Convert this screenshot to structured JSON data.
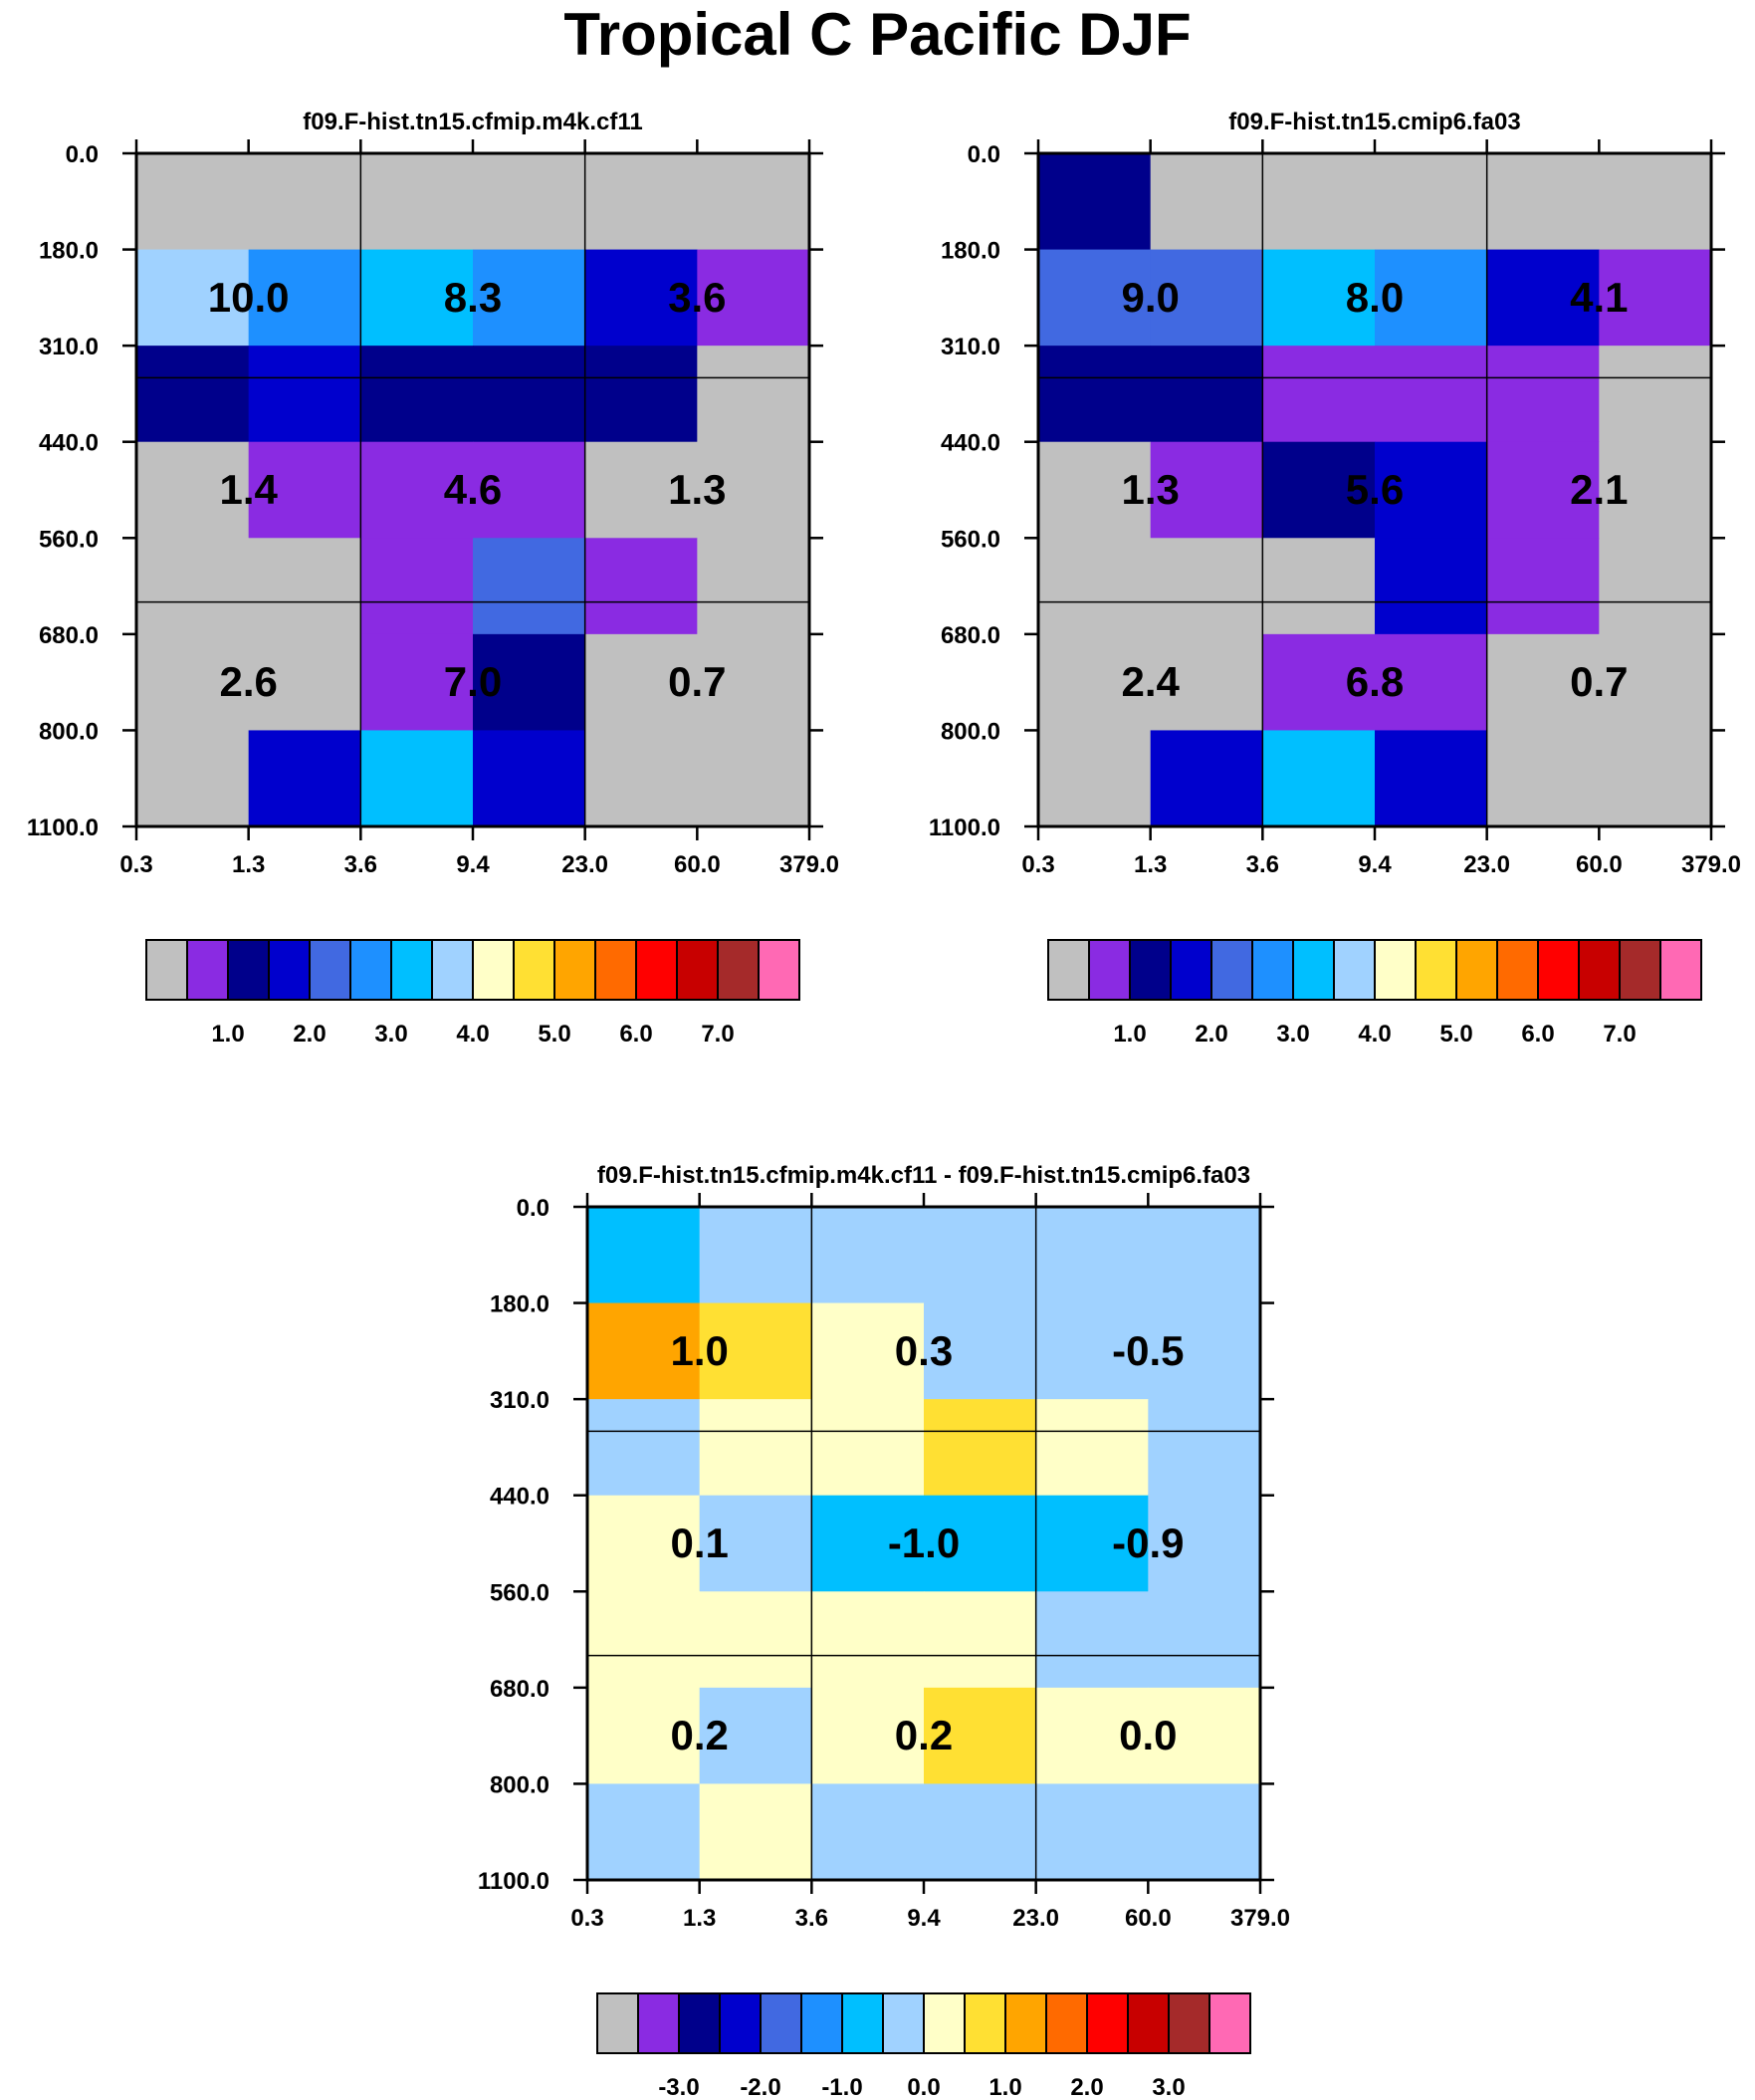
{
  "page": {
    "title": "Tropical C Pacific DJF"
  },
  "colors": {
    "palette": [
      "#c0c0c0",
      "#8a2be2",
      "#00008b",
      "#0000cd",
      "#4169e1",
      "#1e90ff",
      "#00bfff",
      "#a0d2ff",
      "#ffffc8",
      "#ffe033",
      "#ffa500",
      "#ff6a00",
      "#ff0000",
      "#c80000",
      "#a52a2a",
      "#ff69b4"
    ],
    "axis": "#000000",
    "background": "#ffffff"
  },
  "chart_data": [
    {
      "type": "heatmap",
      "title": "f09.F-hist.tn15.cfmip.m4k.cf11",
      "x_ticks": [
        "0.3",
        "1.3",
        "3.6",
        "9.4",
        "23.0",
        "60.0",
        "379.0"
      ],
      "y_ticks": [
        "0.0",
        "180.0",
        "310.0",
        "440.0",
        "560.0",
        "680.0",
        "800.0",
        "1100.0"
      ],
      "cells": [
        [
          0,
          0,
          0,
          0,
          0,
          0
        ],
        [
          7,
          5,
          6,
          5,
          3,
          1
        ],
        [
          2,
          3,
          2,
          2,
          2,
          0
        ],
        [
          0,
          1,
          1,
          1,
          0,
          0
        ],
        [
          0,
          0,
          1,
          4,
          1,
          0
        ],
        [
          0,
          0,
          1,
          2,
          0,
          0
        ],
        [
          0,
          3,
          6,
          3,
          0,
          0
        ]
      ],
      "labels": [
        [
          "10.0",
          "8.3",
          "3.6"
        ],
        [
          "1.4",
          "4.6",
          "1.3"
        ],
        [
          "2.6",
          "7.0",
          "0.7"
        ]
      ],
      "colorbar": {
        "box_count": 16,
        "tick_labels": [
          "1.0",
          "2.0",
          "3.0",
          "4.0",
          "5.0",
          "6.0",
          "7.0"
        ]
      }
    },
    {
      "type": "heatmap",
      "title": "f09.F-hist.tn15.cmip6.fa03",
      "x_ticks": [
        "0.3",
        "1.3",
        "3.6",
        "9.4",
        "23.0",
        "60.0",
        "379.0"
      ],
      "y_ticks": [
        "0.0",
        "180.0",
        "310.0",
        "440.0",
        "560.0",
        "680.0",
        "800.0",
        "1100.0"
      ],
      "cells": [
        [
          2,
          0,
          0,
          0,
          0,
          0
        ],
        [
          4,
          4,
          6,
          5,
          3,
          1
        ],
        [
          2,
          2,
          1,
          1,
          1,
          0
        ],
        [
          0,
          1,
          2,
          3,
          1,
          0
        ],
        [
          0,
          0,
          0,
          3,
          1,
          0
        ],
        [
          0,
          0,
          1,
          1,
          0,
          0
        ],
        [
          0,
          3,
          6,
          3,
          0,
          0
        ]
      ],
      "labels": [
        [
          "9.0",
          "8.0",
          "4.1"
        ],
        [
          "1.3",
          "5.6",
          "2.1"
        ],
        [
          "2.4",
          "6.8",
          "0.7"
        ]
      ],
      "colorbar": {
        "box_count": 16,
        "tick_labels": [
          "1.0",
          "2.0",
          "3.0",
          "4.0",
          "5.0",
          "6.0",
          "7.0"
        ]
      }
    },
    {
      "type": "heatmap",
      "title": "f09.F-hist.tn15.cfmip.m4k.cf11 - f09.F-hist.tn15.cmip6.fa03",
      "x_ticks": [
        "0.3",
        "1.3",
        "3.6",
        "9.4",
        "23.0",
        "60.0",
        "379.0"
      ],
      "y_ticks": [
        "0.0",
        "180.0",
        "310.0",
        "440.0",
        "560.0",
        "680.0",
        "800.0",
        "1100.0"
      ],
      "cells": [
        [
          6,
          7,
          7,
          7,
          7,
          7
        ],
        [
          10,
          9,
          8,
          7,
          7,
          7
        ],
        [
          7,
          8,
          8,
          9,
          8,
          7
        ],
        [
          8,
          7,
          6,
          6,
          6,
          7
        ],
        [
          8,
          8,
          8,
          8,
          7,
          7
        ],
        [
          8,
          7,
          8,
          9,
          8,
          8
        ],
        [
          7,
          8,
          7,
          7,
          7,
          7
        ]
      ],
      "labels": [
        [
          "1.0",
          "0.3",
          "-0.5"
        ],
        [
          "0.1",
          "-1.0",
          "-0.9"
        ],
        [
          "0.2",
          "0.2",
          "0.0"
        ]
      ],
      "colorbar": {
        "box_count": 16,
        "tick_labels": [
          "-3.0",
          "-2.0",
          "-1.0",
          "0.0",
          "1.0",
          "2.0",
          "3.0"
        ]
      }
    }
  ]
}
